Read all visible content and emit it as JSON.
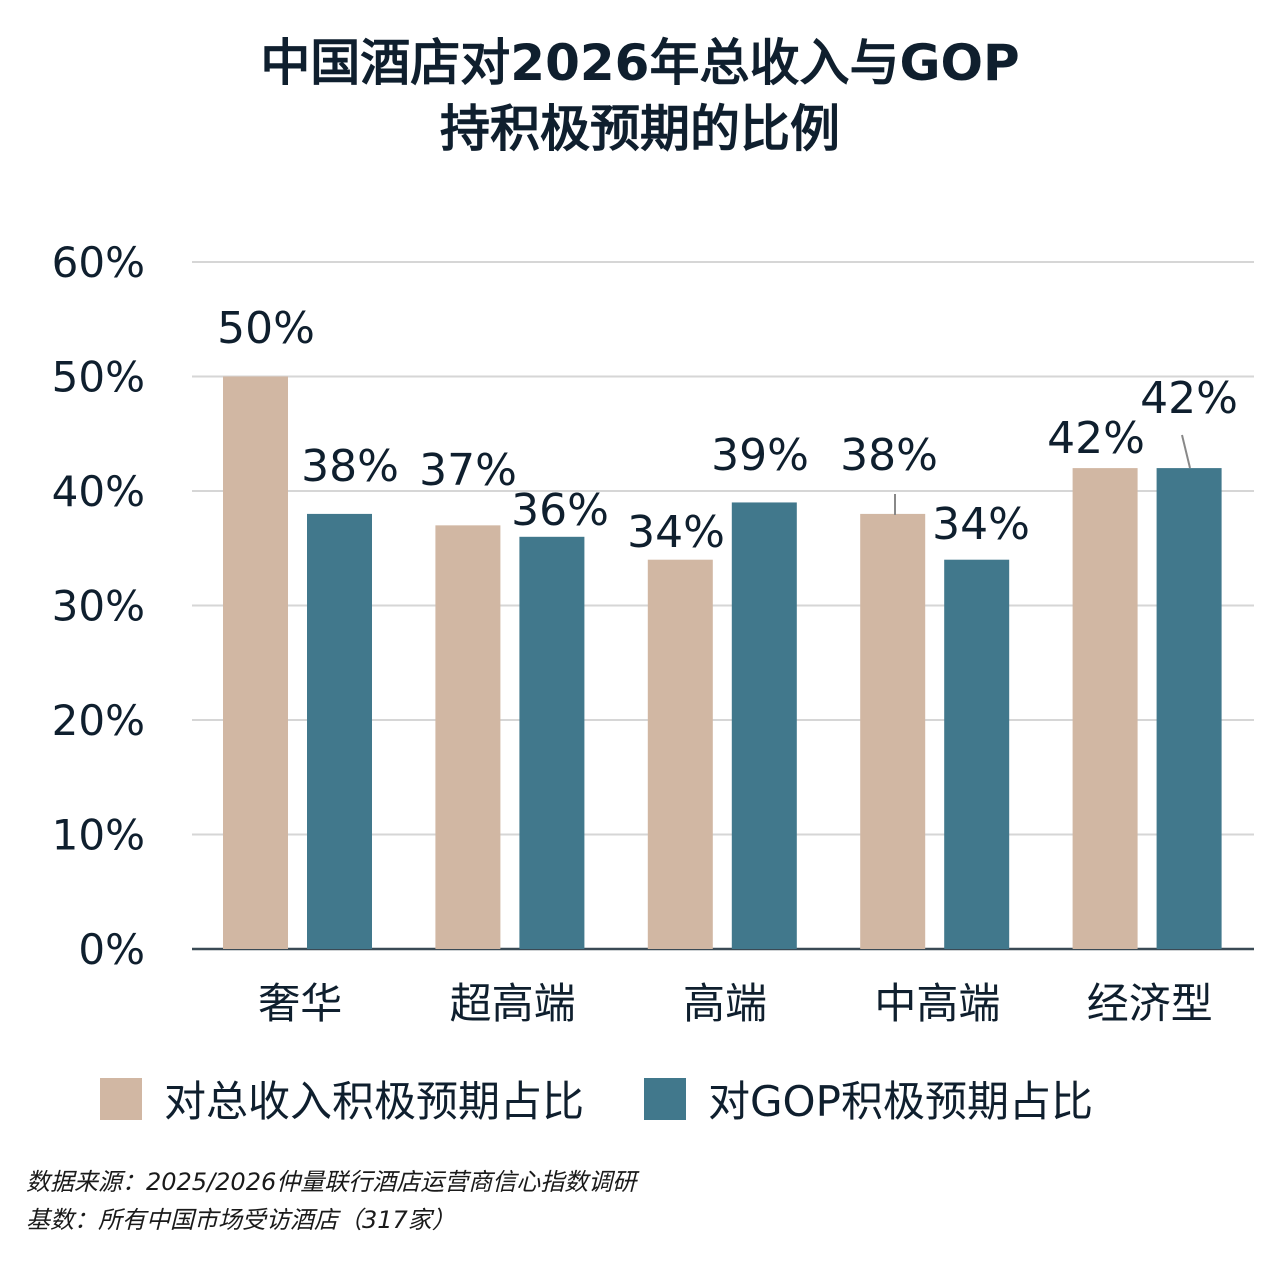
{
  "title_lines": [
    "中国酒店对2026年总收入与GOP",
    "持积极预期的比例"
  ],
  "chart_data": {
    "type": "bar",
    "title": "中国酒店对2026年总收入与GOP持积极预期的比例",
    "categories": [
      "奢华",
      "超高端",
      "高端",
      "中高端",
      "经济型"
    ],
    "series": [
      {
        "name": "对总收入积极预期占比",
        "values": [
          50,
          37,
          34,
          38,
          42
        ],
        "color": "#d1b7a3"
      },
      {
        "name": "对GOP积极预期占比",
        "values": [
          38,
          36,
          39,
          34,
          42
        ],
        "color": "#41788c"
      }
    ],
    "yticks": [
      "0%",
      "10%",
      "20%",
      "30%",
      "40%",
      "50%",
      "60%"
    ],
    "ylim": [
      0,
      60
    ],
    "yunit": "%",
    "grid": true,
    "legend_position": "bottom"
  },
  "footer": {
    "source": "数据来源：2025/2026仲量联行酒店运营商信心指数调研",
    "base": "基数：所有中国市场受访酒店（317家）"
  }
}
